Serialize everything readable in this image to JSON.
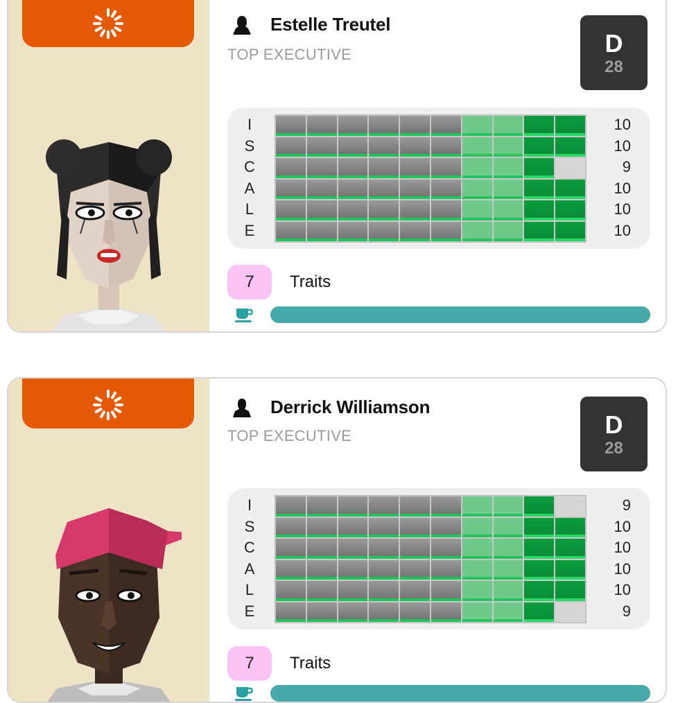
{
  "cards": [
    {
      "name": "Estelle Treutel",
      "role": "TOP EXECUTIVE",
      "grade_letter": "D",
      "grade_number": "28",
      "scale_letters": [
        "I",
        "S",
        "C",
        "A",
        "L",
        "E"
      ],
      "scale_values": [
        "10",
        "10",
        "9",
        "10",
        "10",
        "10"
      ],
      "traits_count": "7",
      "traits_label": "Traits",
      "energy_fraction": 1.0
    },
    {
      "name": "Derrick Williamson",
      "role": "TOP EXECUTIVE",
      "grade_letter": "D",
      "grade_number": "28",
      "scale_letters": [
        "I",
        "S",
        "C",
        "A",
        "L",
        "E"
      ],
      "scale_values": [
        "9",
        "10",
        "10",
        "10",
        "10",
        "9"
      ],
      "traits_count": "7",
      "traits_label": "Traits",
      "energy_fraction": 1.0
    }
  ],
  "icons": {
    "spinner": "loading-spinner-icon",
    "person": "person-icon",
    "energy": "coffee-cup-icon"
  },
  "colors": {
    "accent_orange": "#e55a05",
    "panel_beige": "#efe3c6",
    "grade_bg": "#333333",
    "traits_badge": "#f9c3f3",
    "energy_bar": "#47a9aa",
    "bar_dark_green": "#0b8a36",
    "bar_light_green": "#6fc98a"
  }
}
